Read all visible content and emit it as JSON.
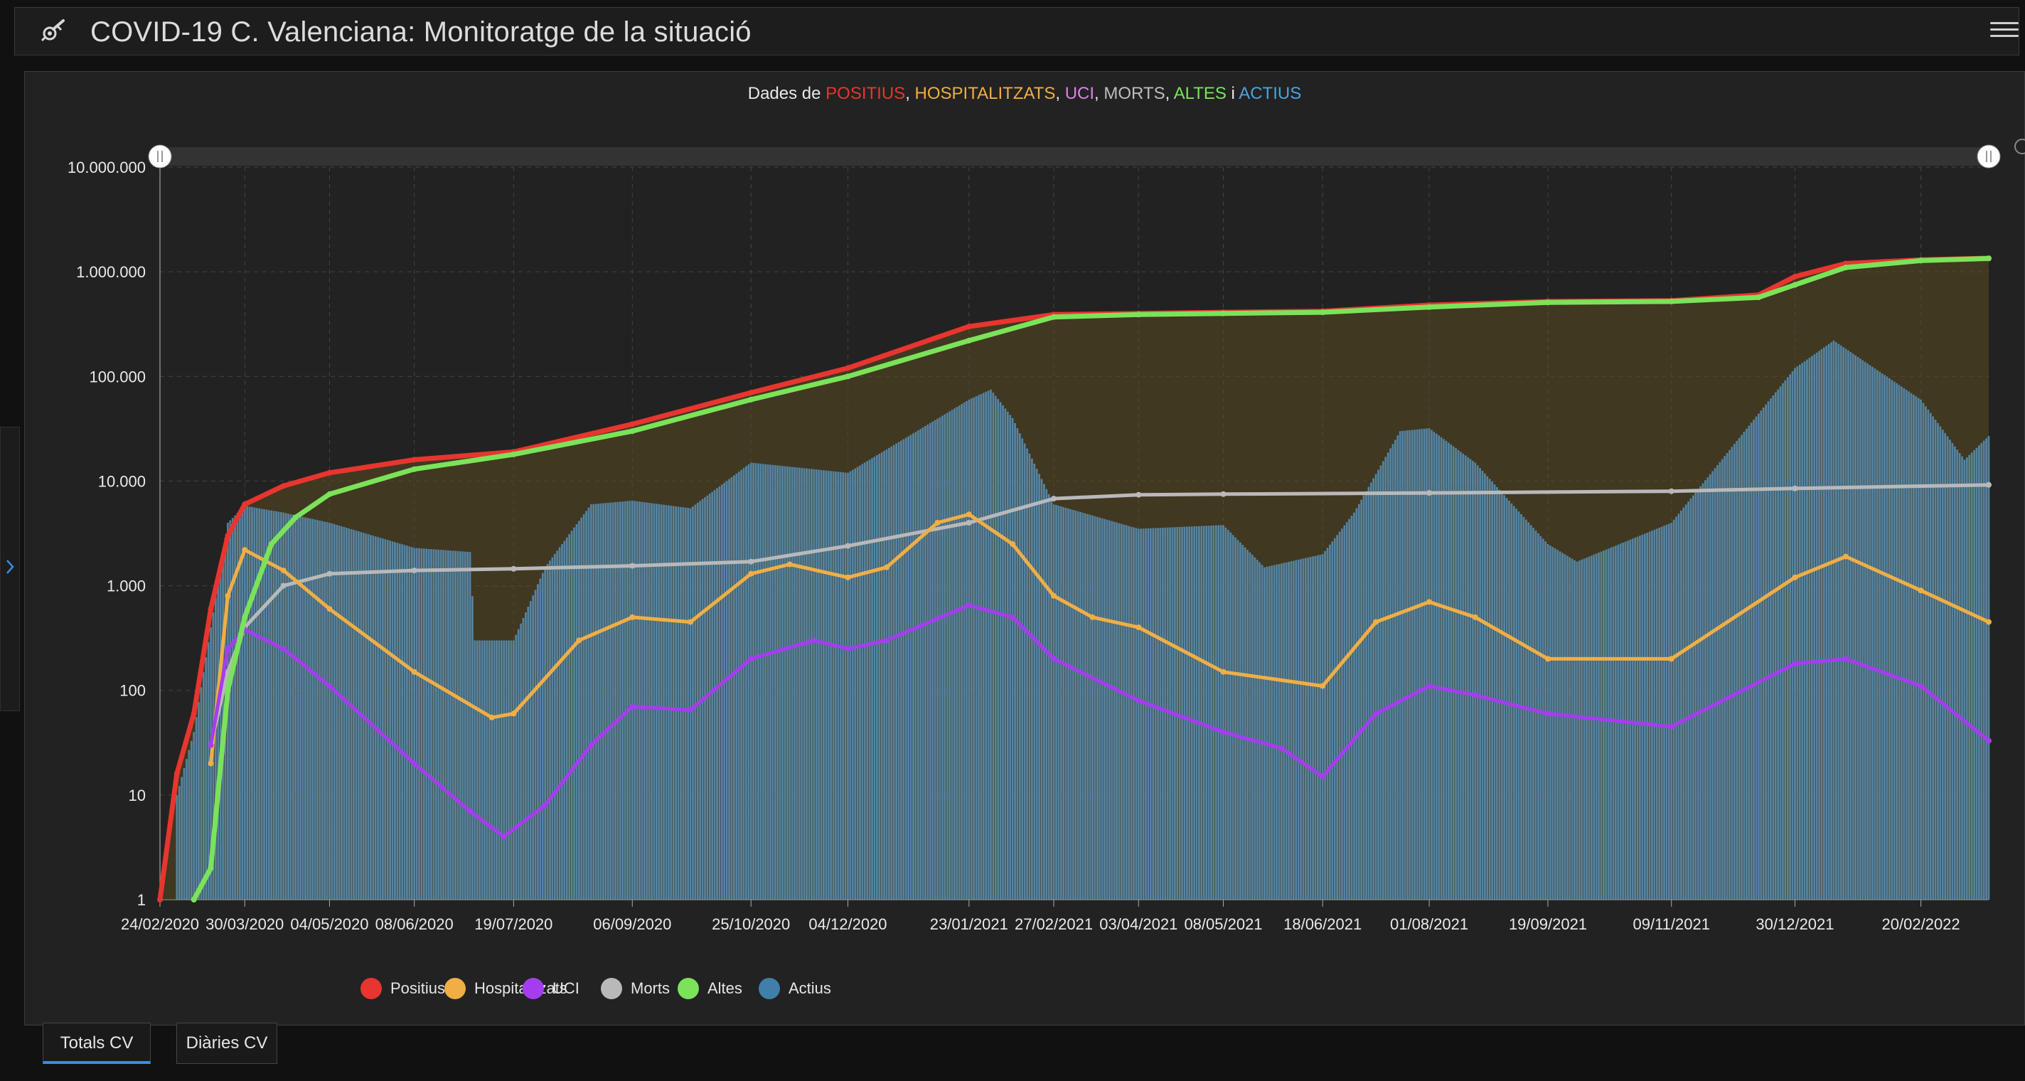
{
  "app": {
    "title": "COVID-19 C. Valenciana: Monitoratge de la situació",
    "logo_icon": "virus-syringe-icon",
    "menu_icon": "hamburger-menu-icon"
  },
  "chart": {
    "title_parts": [
      {
        "text": "Dades de ",
        "color": "#e9e9e9"
      },
      {
        "text": "POSITIUS",
        "color": "#e8352f"
      },
      {
        "text": ", ",
        "color": "#e9e9e9"
      },
      {
        "text": "HOSPITALITZATS",
        "color": "#f0ae45"
      },
      {
        "text": ", ",
        "color": "#e9e9e9"
      },
      {
        "text": "UCI",
        "color": "#e07fe8"
      },
      {
        "text": ", ",
        "color": "#e9e9e9"
      },
      {
        "text": "MORTS",
        "color": "#bdbdbd"
      },
      {
        "text": ", ",
        "color": "#e9e9e9"
      },
      {
        "text": "ALTES",
        "color": "#7be35a"
      },
      {
        "text": " i ",
        "color": "#e9e9e9"
      },
      {
        "text": "ACTIUS",
        "color": "#4aa3df"
      }
    ]
  },
  "legend": [
    {
      "label": "Positius",
      "color": "#e8352f"
    },
    {
      "label": "Hospitalitzats",
      "color": "#f0ae45"
    },
    {
      "label": "UCI",
      "color": "#a63cf0"
    },
    {
      "label": "Morts",
      "color": "#b9b9b9"
    },
    {
      "label": "Altes",
      "color": "#7be35a"
    },
    {
      "label": "Actius",
      "color": "#3f7fa8"
    }
  ],
  "tabs": [
    {
      "label": "Totals CV",
      "active": true
    },
    {
      "label": "Diàries CV",
      "active": false
    }
  ],
  "chart_data": {
    "type": "line",
    "y_scale": "log",
    "ylim": [
      1,
      10000000
    ],
    "y_ticks": [
      "1",
      "10",
      "100",
      "1.000",
      "10.000",
      "100.000",
      "1.000.000",
      "10.000.000"
    ],
    "x_tick_labels": [
      "24/02/2020",
      "30/03/2020",
      "04/05/2020",
      "08/06/2020",
      "19/07/2020",
      "06/09/2020",
      "25/10/2020",
      "04/12/2020",
      "23/01/2021",
      "27/02/2021",
      "03/04/2021",
      "08/05/2021",
      "18/06/2021",
      "01/08/2021",
      "19/09/2021",
      "09/11/2021",
      "30/12/2021",
      "20/02/2022"
    ],
    "x_range": [
      "24/02/2020",
      "20/03/2022"
    ],
    "grid": true,
    "legend_position": "bottom",
    "series": [
      {
        "name": "Positius",
        "color": "#e8352f",
        "type": "line",
        "points": [
          [
            "24/02/2020",
            1
          ],
          [
            "02/03/2020",
            16
          ],
          [
            "09/03/2020",
            60
          ],
          [
            "16/03/2020",
            600
          ],
          [
            "23/03/2020",
            3000
          ],
          [
            "30/03/2020",
            6000
          ],
          [
            "15/04/2020",
            9000
          ],
          [
            "04/05/2020",
            12000
          ],
          [
            "08/06/2020",
            16000
          ],
          [
            "19/07/2020",
            19000
          ],
          [
            "06/09/2020",
            35000
          ],
          [
            "25/10/2020",
            70000
          ],
          [
            "04/12/2020",
            120000
          ],
          [
            "23/01/2021",
            300000
          ],
          [
            "27/02/2021",
            390000
          ],
          [
            "03/04/2021",
            400000
          ],
          [
            "08/05/2021",
            410000
          ],
          [
            "18/06/2021",
            420000
          ],
          [
            "01/08/2021",
            480000
          ],
          [
            "19/09/2021",
            520000
          ],
          [
            "09/11/2021",
            530000
          ],
          [
            "15/12/2021",
            600000
          ],
          [
            "30/12/2021",
            900000
          ],
          [
            "20/01/2022",
            1200000
          ],
          [
            "20/02/2022",
            1300000
          ],
          [
            "20/03/2022",
            1350000
          ]
        ]
      },
      {
        "name": "Hospitalitzats",
        "color": "#f0ae45",
        "type": "line",
        "points": [
          [
            "16/03/2020",
            20
          ],
          [
            "23/03/2020",
            800
          ],
          [
            "30/03/2020",
            2200
          ],
          [
            "15/04/2020",
            1400
          ],
          [
            "04/05/2020",
            600
          ],
          [
            "08/06/2020",
            150
          ],
          [
            "10/07/2020",
            55
          ],
          [
            "19/07/2020",
            60
          ],
          [
            "15/08/2020",
            300
          ],
          [
            "06/09/2020",
            500
          ],
          [
            "30/09/2020",
            450
          ],
          [
            "25/10/2020",
            1300
          ],
          [
            "10/11/2020",
            1600
          ],
          [
            "04/12/2020",
            1200
          ],
          [
            "20/12/2020",
            1500
          ],
          [
            "10/01/2021",
            4000
          ],
          [
            "23/01/2021",
            4800
          ],
          [
            "10/02/2021",
            2500
          ],
          [
            "27/02/2021",
            800
          ],
          [
            "15/03/2021",
            500
          ],
          [
            "03/04/2021",
            400
          ],
          [
            "08/05/2021",
            150
          ],
          [
            "18/06/2021",
            110
          ],
          [
            "10/07/2021",
            450
          ],
          [
            "01/08/2021",
            700
          ],
          [
            "20/08/2021",
            500
          ],
          [
            "19/09/2021",
            200
          ],
          [
            "09/11/2021",
            200
          ],
          [
            "30/12/2021",
            1200
          ],
          [
            "20/01/2022",
            1900
          ],
          [
            "20/02/2022",
            900
          ],
          [
            "20/03/2022",
            450
          ]
        ]
      },
      {
        "name": "UCI",
        "color": "#a63cf0",
        "type": "line",
        "points": [
          [
            "16/03/2020",
            30
          ],
          [
            "23/03/2020",
            250
          ],
          [
            "30/03/2020",
            380
          ],
          [
            "15/04/2020",
            250
          ],
          [
            "04/05/2020",
            110
          ],
          [
            "08/06/2020",
            20
          ],
          [
            "01/07/2020",
            7
          ],
          [
            "15/07/2020",
            4
          ],
          [
            "01/08/2020",
            8
          ],
          [
            "20/08/2020",
            30
          ],
          [
            "06/09/2020",
            70
          ],
          [
            "30/09/2020",
            65
          ],
          [
            "25/10/2020",
            200
          ],
          [
            "20/11/2020",
            300
          ],
          [
            "04/12/2020",
            250
          ],
          [
            "20/12/2020",
            300
          ],
          [
            "23/01/2021",
            650
          ],
          [
            "10/02/2021",
            500
          ],
          [
            "27/02/2021",
            200
          ],
          [
            "03/04/2021",
            80
          ],
          [
            "08/05/2021",
            40
          ],
          [
            "01/06/2021",
            28
          ],
          [
            "18/06/2021",
            15
          ],
          [
            "10/07/2021",
            60
          ],
          [
            "01/08/2021",
            110
          ],
          [
            "20/08/2021",
            90
          ],
          [
            "19/09/2021",
            60
          ],
          [
            "09/11/2021",
            45
          ],
          [
            "30/12/2021",
            180
          ],
          [
            "20/01/2022",
            200
          ],
          [
            "20/02/2022",
            110
          ],
          [
            "20/03/2022",
            33
          ]
        ]
      },
      {
        "name": "Morts",
        "color": "#b9b9b9",
        "type": "line",
        "points": [
          [
            "16/03/2020",
            30
          ],
          [
            "23/03/2020",
            150
          ],
          [
            "30/03/2020",
            400
          ],
          [
            "15/04/2020",
            1000
          ],
          [
            "04/05/2020",
            1300
          ],
          [
            "08/06/2020",
            1400
          ],
          [
            "19/07/2020",
            1450
          ],
          [
            "06/09/2020",
            1550
          ],
          [
            "25/10/2020",
            1700
          ],
          [
            "04/12/2020",
            2400
          ],
          [
            "23/01/2021",
            4000
          ],
          [
            "27/02/2021",
            6800
          ],
          [
            "03/04/2021",
            7400
          ],
          [
            "08/05/2021",
            7500
          ],
          [
            "01/08/2021",
            7700
          ],
          [
            "09/11/2021",
            8000
          ],
          [
            "30/12/2021",
            8500
          ],
          [
            "20/03/2022",
            9200
          ]
        ]
      },
      {
        "name": "Altes",
        "color": "#7be35a",
        "type": "line",
        "points": [
          [
            "09/03/2020",
            1
          ],
          [
            "16/03/2020",
            2
          ],
          [
            "23/03/2020",
            100
          ],
          [
            "30/03/2020",
            500
          ],
          [
            "10/04/2020",
            2500
          ],
          [
            "20/04/2020",
            4500
          ],
          [
            "04/05/2020",
            7500
          ],
          [
            "08/06/2020",
            13000
          ],
          [
            "19/07/2020",
            18000
          ],
          [
            "06/09/2020",
            30000
          ],
          [
            "25/10/2020",
            60000
          ],
          [
            "04/12/2020",
            100000
          ],
          [
            "23/01/2021",
            220000
          ],
          [
            "27/02/2021",
            370000
          ],
          [
            "03/04/2021",
            390000
          ],
          [
            "08/05/2021",
            400000
          ],
          [
            "18/06/2021",
            410000
          ],
          [
            "01/08/2021",
            460000
          ],
          [
            "19/09/2021",
            510000
          ],
          [
            "09/11/2021",
            520000
          ],
          [
            "15/12/2021",
            570000
          ],
          [
            "30/12/2021",
            750000
          ],
          [
            "20/01/2022",
            1100000
          ],
          [
            "20/02/2022",
            1280000
          ],
          [
            "20/03/2022",
            1340000
          ]
        ]
      },
      {
        "name": "Actius",
        "color": "#3f7fa8",
        "type": "bar",
        "points": [
          [
            "02/03/2020",
            10
          ],
          [
            "09/03/2020",
            40
          ],
          [
            "16/03/2020",
            400
          ],
          [
            "23/03/2020",
            4000
          ],
          [
            "30/03/2020",
            5800
          ],
          [
            "15/04/2020",
            5000
          ],
          [
            "04/05/2020",
            4000
          ],
          [
            "08/06/2020",
            2300
          ],
          [
            "01/07/2020",
            2100
          ],
          [
            "03/07/2020",
            300
          ],
          [
            "19/07/2020",
            300
          ],
          [
            "01/08/2020",
            1500
          ],
          [
            "20/08/2020",
            6000
          ],
          [
            "06/09/2020",
            6500
          ],
          [
            "30/09/2020",
            5500
          ],
          [
            "25/10/2020",
            15000
          ],
          [
            "04/12/2020",
            12000
          ],
          [
            "23/01/2021",
            60000
          ],
          [
            "01/02/2021",
            75000
          ],
          [
            "10/02/2021",
            40000
          ],
          [
            "27/02/2021",
            6000
          ],
          [
            "03/04/2021",
            3500
          ],
          [
            "08/05/2021",
            3800
          ],
          [
            "25/05/2021",
            1500
          ],
          [
            "18/06/2021",
            2000
          ],
          [
            "01/07/2021",
            5000
          ],
          [
            "20/07/2021",
            30000
          ],
          [
            "01/08/2021",
            32000
          ],
          [
            "20/08/2021",
            15000
          ],
          [
            "19/09/2021",
            2500
          ],
          [
            "01/10/2021",
            1700
          ],
          [
            "09/11/2021",
            4000
          ],
          [
            "30/12/2021",
            120000
          ],
          [
            "15/01/2022",
            220000
          ],
          [
            "20/02/2022",
            60000
          ],
          [
            "10/03/2022",
            16000
          ],
          [
            "20/03/2022",
            27000
          ]
        ]
      }
    ]
  }
}
